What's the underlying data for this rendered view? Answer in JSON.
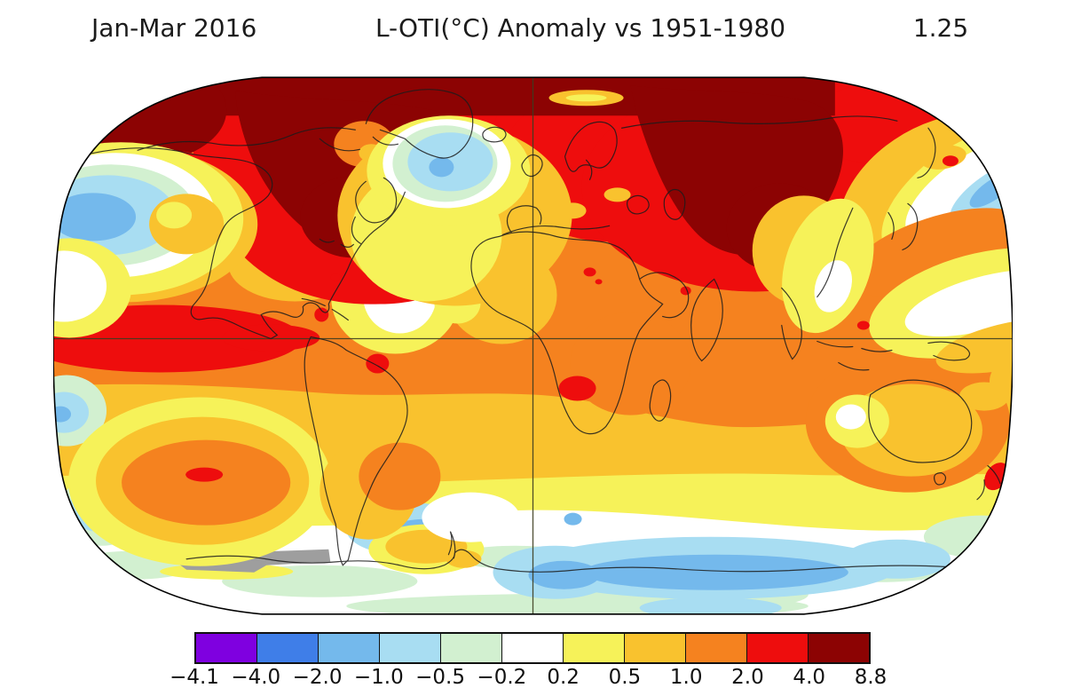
{
  "header": {
    "period": "Jan-Mar 2016",
    "title": "L-OTI(°C) Anomaly vs 1951-1980",
    "global_mean": "1.25"
  },
  "chart_data": {
    "type": "heatmap",
    "subtype": "global-temperature-anomaly-map",
    "projection": "Robinson",
    "dataset": "L-OTI",
    "units": "°C",
    "period": "Jan-Mar 2016",
    "baseline": "1951-1980",
    "global_mean_anomaly": 1.25,
    "colorbar": {
      "orientation": "horizontal",
      "position": "bottom",
      "tick_labels": [
        "−4.1",
        "−4.0",
        "−2.0",
        "−1.0",
        "−0.5",
        "−0.2",
        "0.2",
        "0.5",
        "1.0",
        "2.0",
        "4.0",
        "8.8"
      ],
      "boundaries": [
        -4.1,
        -4.0,
        -2.0,
        -1.0,
        -0.5,
        -0.2,
        0.2,
        0.5,
        1.0,
        2.0,
        4.0,
        8.8
      ],
      "colors": [
        "#7f00e0",
        "#3f7ee8",
        "#74b9ec",
        "#a8ddf2",
        "#d2f0d0",
        "#ffffff",
        "#f6f259",
        "#f9c22e",
        "#f5821f",
        "#ee0d0d",
        "#8c0303"
      ]
    },
    "no_data_color": "#9e9e9e",
    "grid": {
      "equator_shown": true,
      "central_meridian_shown": true
    },
    "regions": [
      {
        "region": "Arctic / northern Canada / Greenland",
        "anomaly_c": "4.0 to 8.8"
      },
      {
        "region": "Central and northern Siberia",
        "anomaly_c": "4.0 to 8.8"
      },
      {
        "region": "Northern mid-to-high latitudes (Canada, US, Europe, Russia)",
        "anomaly_c": "2.0 to 4.0"
      },
      {
        "region": "Eastern equatorial Pacific (El Niño band)",
        "anomaly_c": "2.0 to 4.0"
      },
      {
        "region": "Most remaining land areas and tropical oceans",
        "anomaly_c": "0.5 to 2.0"
      },
      {
        "region": "Northeast Pacific",
        "anomaly_c": "-1.0 to -0.5"
      },
      {
        "region": "North Atlantic south of Greenland",
        "anomaly_c": "-2.0 to -0.5"
      },
      {
        "region": "Northwest Pacific near Kamchatka",
        "anomaly_c": "-1.0 to -0.2"
      },
      {
        "region": "Southern Ocean mid-latitude band",
        "anomaly_c": "-0.5 to 0.5"
      },
      {
        "region": "Antarctic coastal waters",
        "anomaly_c": "-1.0 to -0.2"
      },
      {
        "region": "South Pacific patch near 60°S",
        "anomaly_c": "no data (gray)"
      }
    ]
  }
}
